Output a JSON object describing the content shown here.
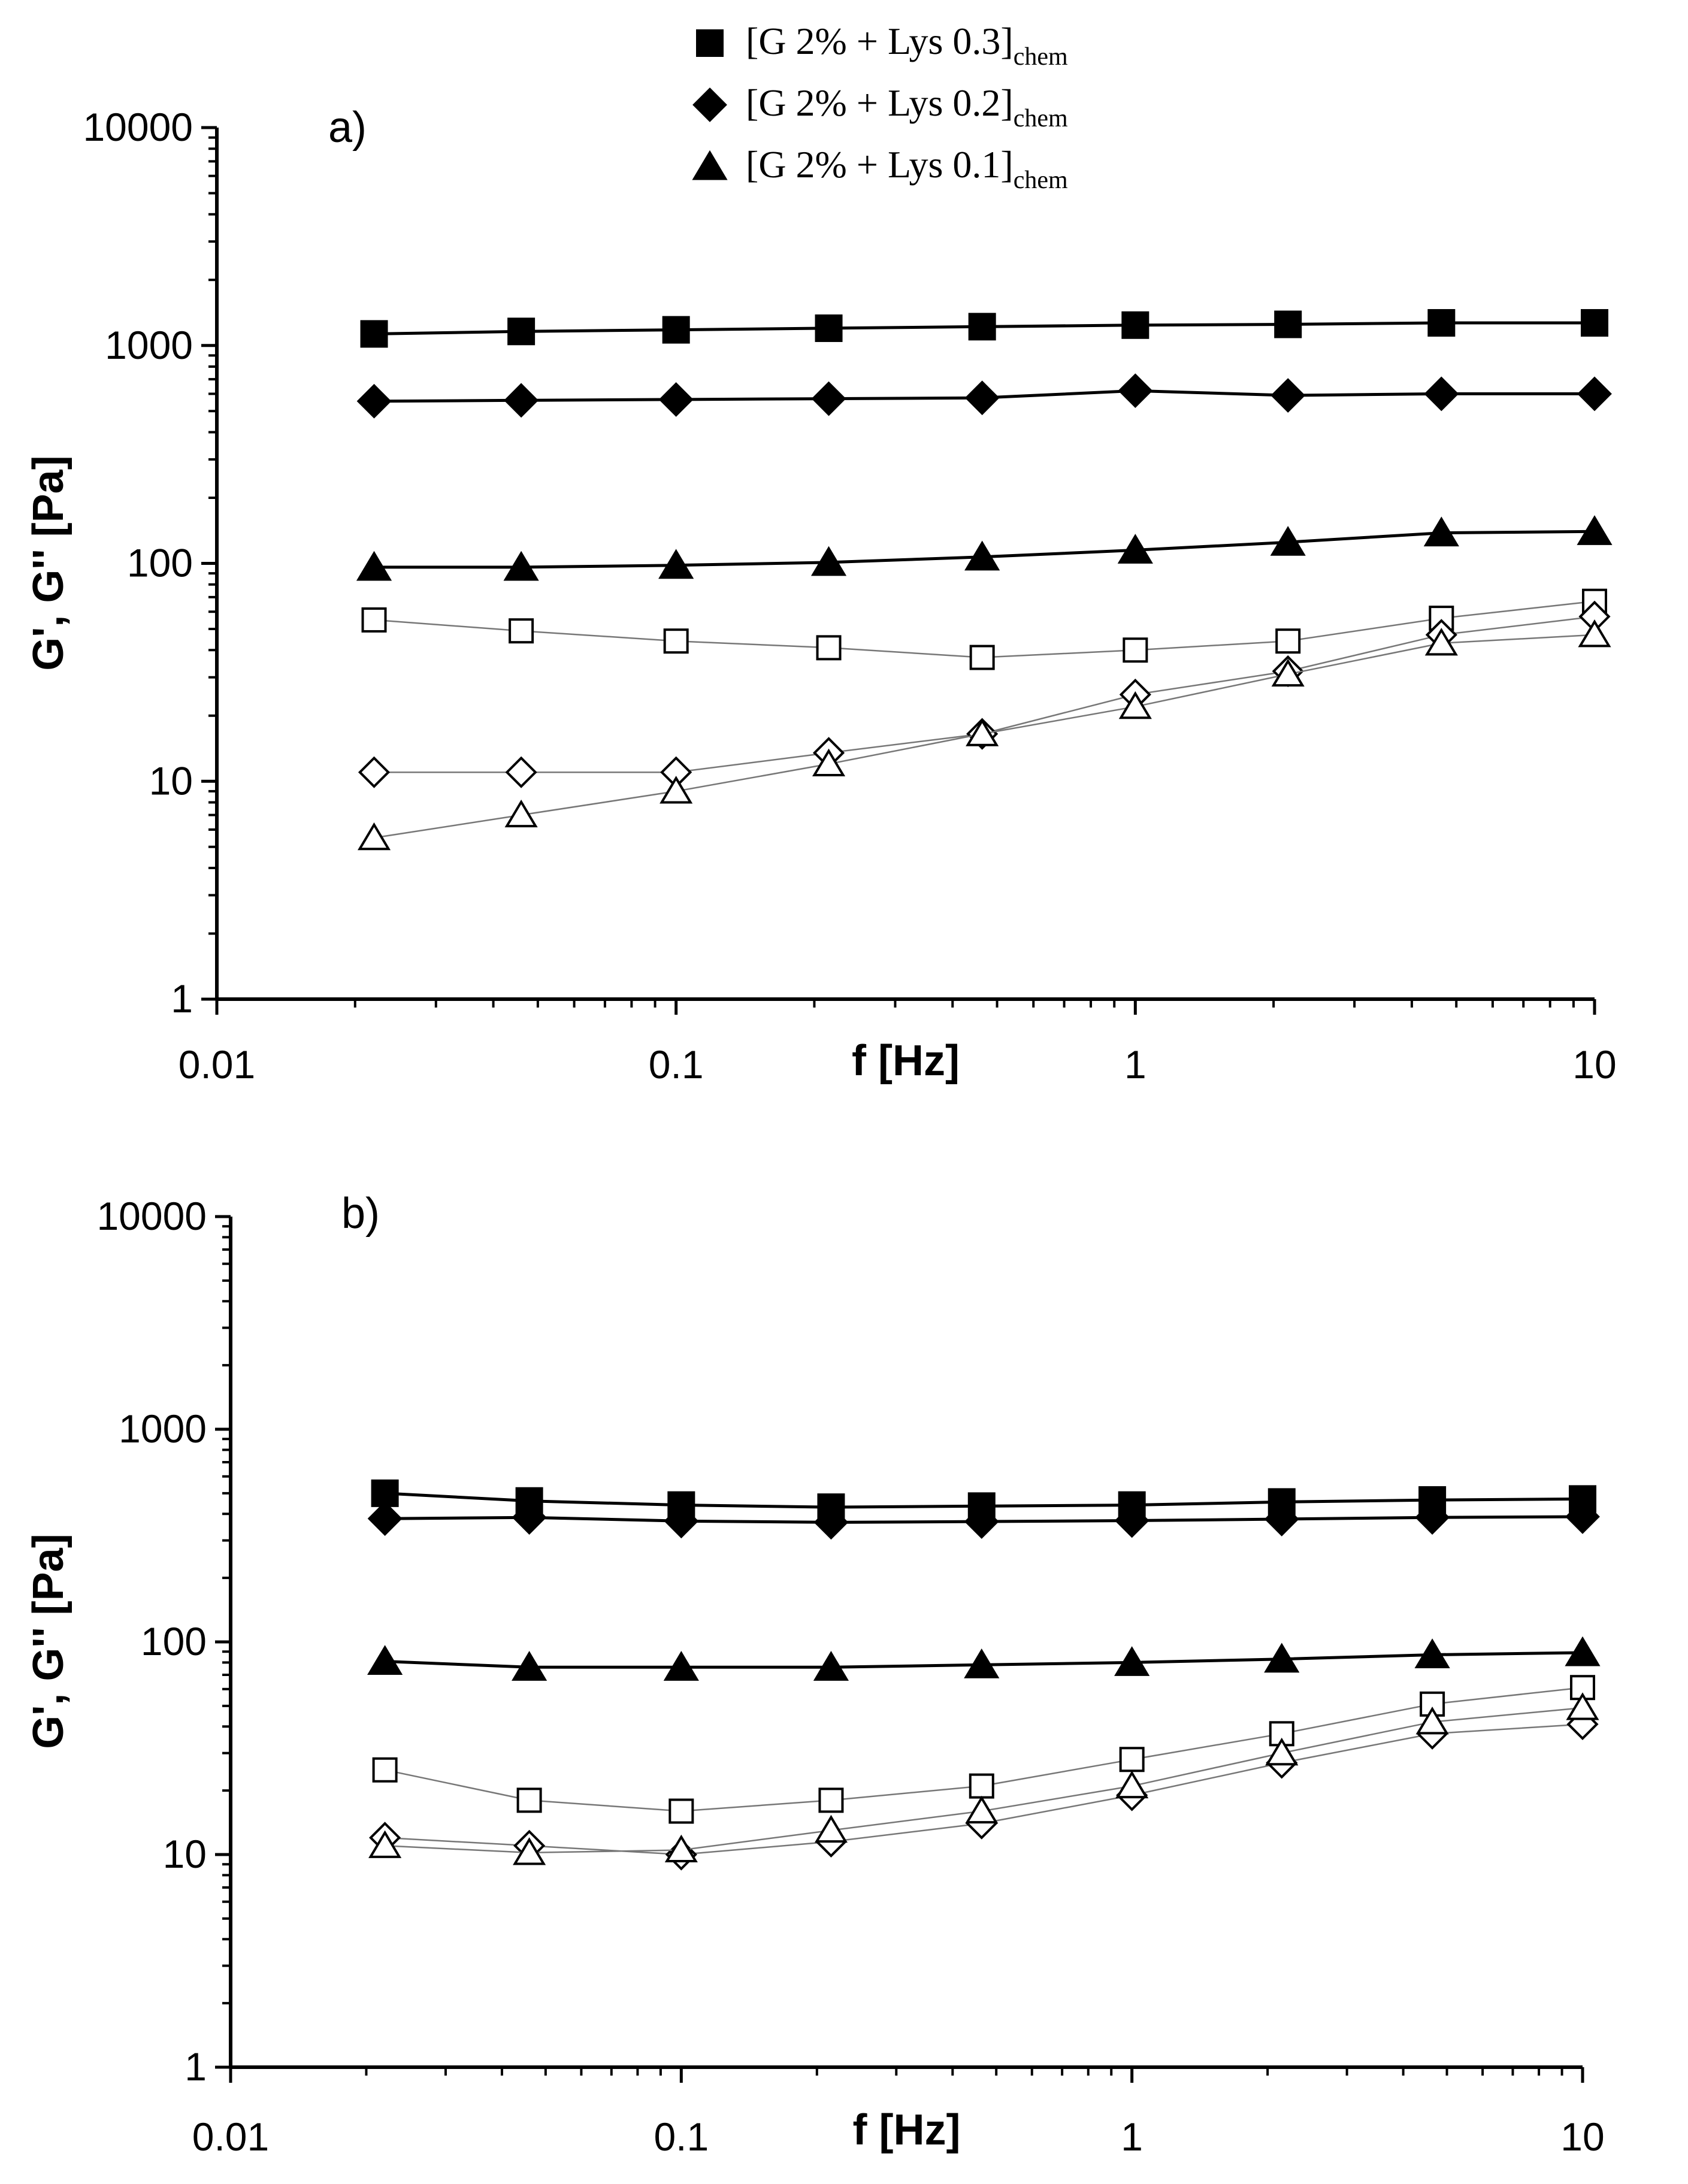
{
  "legend": [
    {
      "marker": "square",
      "main": "[G 2% + Lys 0.3]",
      "sub": "chem"
    },
    {
      "marker": "diamond",
      "main": "[G 2% + Lys 0.2]",
      "sub": "chem"
    },
    {
      "marker": "triangle",
      "main": "[G 2% + Lys 0.1]",
      "sub": "chem"
    }
  ],
  "chart_data": [
    {
      "type": "scatter",
      "panel": "a)",
      "xlabel": "f [Hz]",
      "ylabel": "G', G'' [Pa]",
      "xscale": "log",
      "yscale": "log",
      "xlim": [
        0.01,
        10
      ],
      "ylim": [
        1,
        10000
      ],
      "x_tick_labels": [
        "0.01",
        "0.1",
        "1",
        "10"
      ],
      "y_tick_labels": [
        "1",
        "10",
        "100",
        "1000",
        "10000"
      ],
      "x": [
        0.022,
        0.046,
        0.1,
        0.215,
        0.464,
        1,
        2.15,
        4.64,
        10
      ],
      "series": [
        {
          "name": "G' [G 2% + Lys 0.3]chem",
          "marker": "square",
          "filled": true,
          "values": [
            1130,
            1160,
            1180,
            1200,
            1220,
            1240,
            1250,
            1270,
            1270
          ]
        },
        {
          "name": "G' [G 2% + Lys 0.2]chem",
          "marker": "diamond",
          "filled": true,
          "values": [
            555,
            560,
            565,
            570,
            575,
            620,
            590,
            600,
            600
          ]
        },
        {
          "name": "G' [G 2% + Lys 0.1]chem",
          "marker": "triangle",
          "filled": true,
          "values": [
            96,
            96,
            98,
            101,
            107,
            115,
            125,
            138,
            140
          ]
        },
        {
          "name": "G'' [G 2% + Lys 0.3]chem",
          "marker": "square",
          "filled": false,
          "values": [
            55,
            49,
            44,
            41,
            37,
            40,
            44,
            56,
            67
          ]
        },
        {
          "name": "G'' [G 2% + Lys 0.2]chem",
          "marker": "diamond",
          "filled": false,
          "values": [
            11,
            11,
            11,
            13.5,
            16.5,
            25,
            32,
            47,
            57
          ]
        },
        {
          "name": "G'' [G 2% + Lys 0.1]chem",
          "marker": "triangle",
          "filled": false,
          "values": [
            5.5,
            7,
            9,
            12,
            16.5,
            22,
            31,
            43,
            47
          ]
        }
      ]
    },
    {
      "type": "scatter",
      "panel": "b)",
      "xlabel": "f [Hz]",
      "ylabel": "G', G'' [Pa]",
      "xscale": "log",
      "yscale": "log",
      "xlim": [
        0.01,
        10
      ],
      "ylim": [
        1,
        10000
      ],
      "x_tick_labels": [
        "0.01",
        "0.1",
        "1",
        "10"
      ],
      "y_tick_labels": [
        "1",
        "10",
        "100",
        "1000",
        "10000"
      ],
      "x": [
        0.022,
        0.046,
        0.1,
        0.215,
        0.464,
        1,
        2.15,
        4.64,
        10
      ],
      "series": [
        {
          "name": "G' [G 2% + Lys 0.3]chem",
          "marker": "square",
          "filled": true,
          "values": [
            500,
            460,
            440,
            430,
            435,
            440,
            455,
            465,
            470
          ]
        },
        {
          "name": "G' [G 2% + Lys 0.2]chem",
          "marker": "diamond",
          "filled": true,
          "values": [
            380,
            385,
            370,
            365,
            368,
            372,
            378,
            385,
            388
          ]
        },
        {
          "name": "G' [G 2% + Lys 0.1]chem",
          "marker": "triangle",
          "filled": true,
          "values": [
            81,
            76,
            76,
            76,
            78,
            80,
            83,
            87,
            89
          ]
        },
        {
          "name": "G'' [G 2% + Lys 0.3]chem",
          "marker": "square",
          "filled": false,
          "values": [
            25,
            18,
            16,
            18,
            21,
            28,
            37,
            51,
            61
          ]
        },
        {
          "name": "G'' [G 2% + Lys 0.2]chem",
          "marker": "diamond",
          "filled": false,
          "values": [
            12,
            11,
            10,
            11.5,
            14,
            19,
            27,
            37,
            41
          ]
        },
        {
          "name": "G'' [G 2% + Lys 0.1]chem",
          "marker": "triangle",
          "filled": false,
          "values": [
            11,
            10.2,
            10.5,
            13,
            16,
            21,
            30,
            42,
            49
          ]
        }
      ]
    }
  ]
}
